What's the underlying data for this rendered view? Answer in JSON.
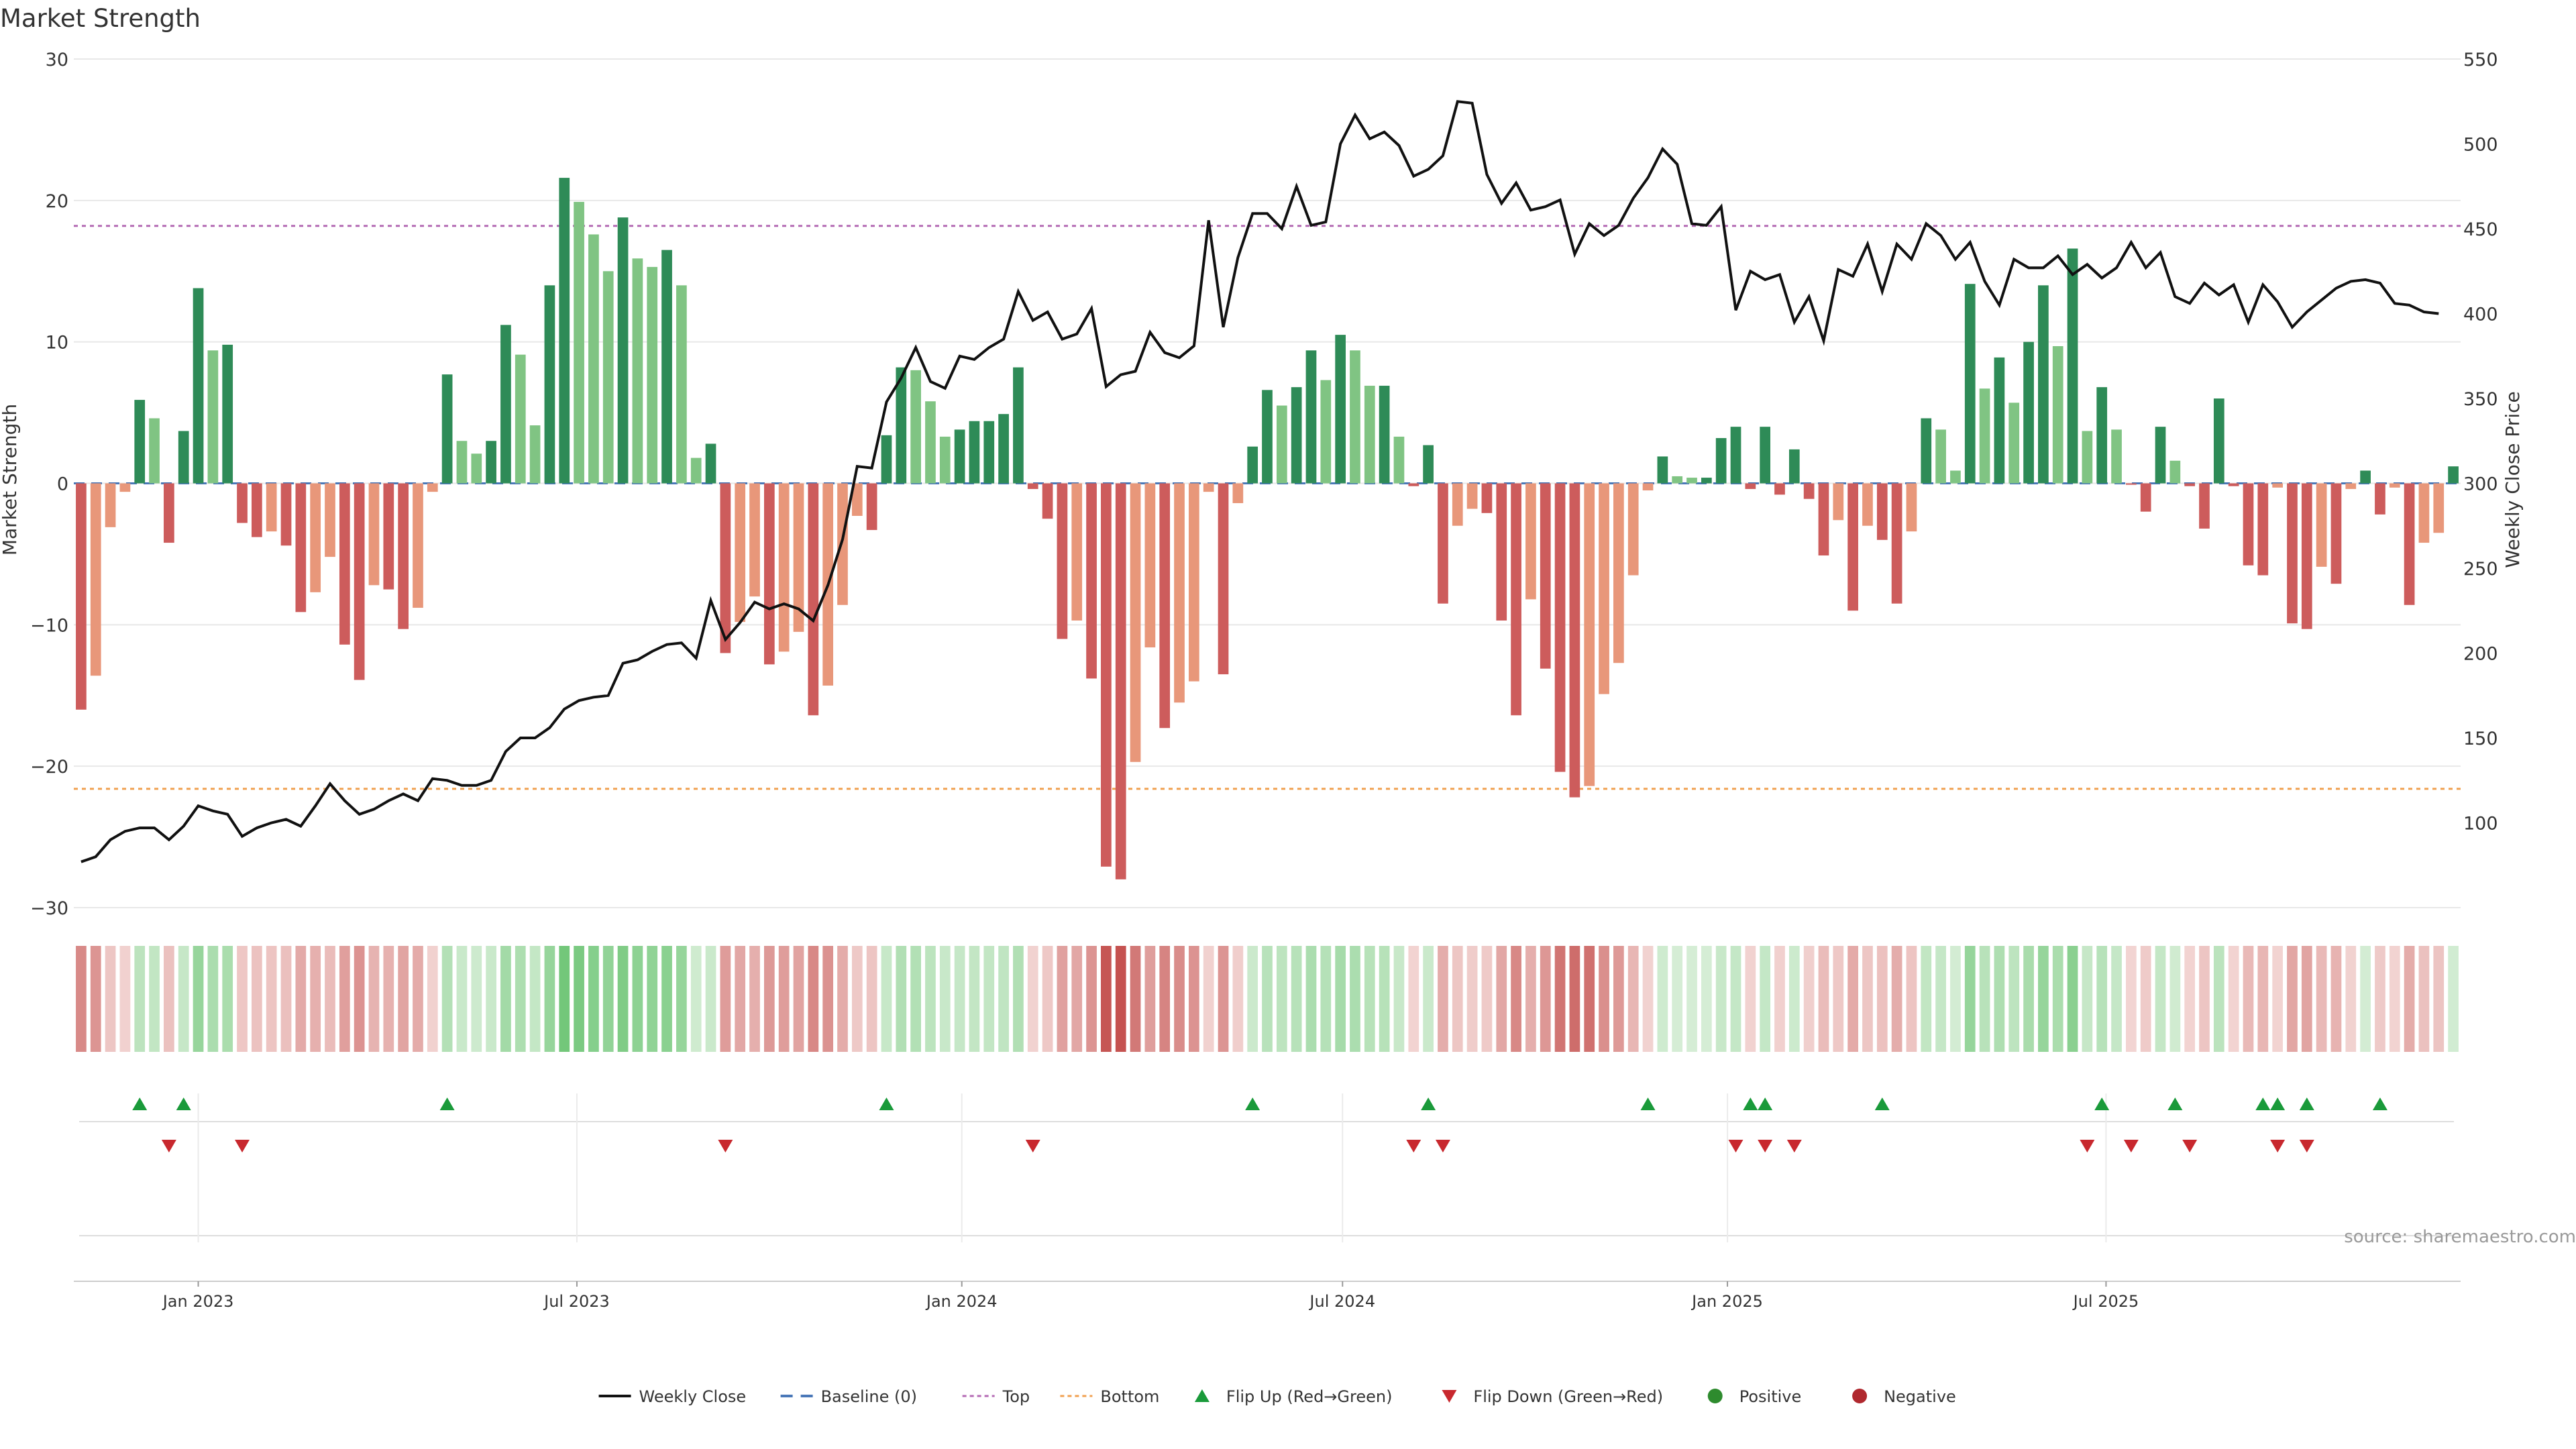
{
  "chart_data": {
    "type": "bar",
    "title": "Market Strength",
    "ylabel": "Market Strength",
    "y2label": "Weekly Close Price",
    "ylim": [
      -30,
      30
    ],
    "y2lim": [
      50,
      550
    ],
    "yticks": [
      30,
      20,
      10,
      0,
      -10,
      -20,
      -30
    ],
    "yticks_labels": [
      "30",
      "20",
      "10",
      "0",
      "−10",
      "−20",
      "−30"
    ],
    "y2ticks": [
      550,
      500,
      450,
      400,
      350,
      300,
      250,
      200,
      150,
      100
    ],
    "y2ticks_labels": [
      "550",
      "500",
      "450",
      "400",
      "350",
      "300",
      "250",
      "200",
      "150",
      "100"
    ],
    "top_line": 18.2,
    "bottom_line": -21.6,
    "start_date": "2022-11-06",
    "xticks": [
      {
        "date": "2023-01-01",
        "label": "Jan 2023"
      },
      {
        "date": "2023-07-01",
        "label": "Jul 2023"
      },
      {
        "date": "2024-01-01",
        "label": "Jan 2024"
      },
      {
        "date": "2024-07-01",
        "label": "Jul 2024"
      },
      {
        "date": "2025-01-01",
        "label": "Jan 2025"
      },
      {
        "date": "2025-07-01",
        "label": "Jul 2025"
      }
    ],
    "strength": [
      -16,
      -13.6,
      -3.1,
      -0.6,
      5.9,
      4.6,
      -4.2,
      3.7,
      13.8,
      9.4,
      9.8,
      -2.8,
      -3.8,
      -3.4,
      -4.4,
      -9.1,
      -7.7,
      -5.2,
      -11.4,
      -13.9,
      -7.2,
      -7.5,
      -10.3,
      -8.8,
      -0.6,
      7.7,
      3,
      2.1,
      3,
      11.2,
      9.1,
      4.1,
      14,
      21.6,
      19.9,
      17.6,
      15,
      18.8,
      15.9,
      15.3,
      16.5,
      14,
      1.8,
      2.8,
      -12,
      -9.8,
      -8,
      -12.8,
      -11.9,
      -10.5,
      -16.4,
      -14.3,
      -8.6,
      -2.3,
      -3.3,
      3.4,
      8.2,
      8,
      5.8,
      3.3,
      3.8,
      4.4,
      4.4,
      4.9,
      8.2,
      -0.4,
      -2.5,
      -11,
      -9.7,
      -13.8,
      -27.1,
      -28,
      -19.7,
      -11.6,
      -17.3,
      -15.5,
      -14,
      -0.6,
      -13.5,
      -1.4,
      2.6,
      6.6,
      5.5,
      6.8,
      9.4,
      7.3,
      10.5,
      9.4,
      6.9,
      6.9,
      3.3,
      -0.2,
      2.7,
      -8.5,
      -3,
      -1.8,
      -2.1,
      -9.7,
      -16.4,
      -8.2,
      -13.1,
      -20.4,
      -22.2,
      -21.4,
      -14.9,
      -12.7,
      -6.5,
      -0.5,
      1.9,
      0.5,
      0.4,
      0.4,
      3.2,
      4,
      -0.4,
      4,
      -0.8,
      2.4,
      -1.1,
      -5.1,
      -2.6,
      -9,
      -3,
      -4,
      -8.5,
      -3.4,
      4.6,
      3.8,
      0.9,
      14.1,
      6.7,
      8.9,
      5.7,
      10,
      14,
      9.7,
      16.6,
      3.7,
      6.8,
      3.8,
      -0.1,
      -2,
      4,
      1.6,
      -0.2,
      -3.2,
      6,
      -0.2,
      -5.8,
      -6.5,
      -0.3,
      -9.9,
      -10.3,
      -5.9,
      -7.1,
      -0.4,
      0.9,
      -2.2,
      -0.3,
      -8.6,
      -4.2,
      -3.5,
      1.2
    ],
    "weekly_close": [
      77,
      80,
      90,
      95,
      97,
      97,
      90,
      98,
      110,
      107,
      105,
      92,
      97,
      100,
      102,
      98,
      110,
      123,
      113,
      105,
      108,
      113,
      117,
      113,
      126,
      125,
      122,
      122,
      125,
      142,
      150,
      150,
      156,
      167,
      172,
      174,
      175,
      194,
      196,
      201,
      205,
      206,
      197,
      231,
      208,
      218,
      230,
      226,
      229,
      226,
      219,
      240,
      267,
      310,
      309,
      348,
      362,
      380,
      360,
      356,
      375,
      373,
      380,
      385,
      413,
      396,
      401,
      385,
      388,
      403,
      357,
      364,
      366,
      389,
      377,
      374,
      381,
      455,
      392,
      433,
      459,
      459,
      450,
      475,
      452,
      454,
      500,
      517,
      503,
      507,
      499,
      481,
      485,
      493,
      525,
      524,
      482,
      465,
      477,
      461,
      463,
      467,
      435,
      453,
      446,
      452,
      468,
      480,
      497,
      488,
      453,
      452,
      463,
      402,
      425,
      420,
      423,
      395,
      410,
      384,
      426,
      422,
      441,
      413,
      441,
      432,
      453,
      446,
      432,
      442,
      419,
      405,
      432,
      427,
      427,
      434,
      423,
      429,
      421,
      427,
      442,
      427,
      436,
      410,
      406,
      418,
      411,
      417,
      395,
      417,
      407,
      392,
      401,
      408,
      415,
      419,
      420,
      418,
      406,
      405,
      401,
      400
    ],
    "flip_up_idx": [
      4,
      7,
      25,
      55,
      80,
      92,
      107,
      114,
      115,
      123,
      138,
      143,
      149,
      150,
      152,
      157
    ],
    "flip_down_idx": [
      6,
      11,
      44,
      65,
      91,
      93,
      113,
      115,
      117,
      137,
      140,
      144,
      150,
      152
    ],
    "legend": [
      {
        "key": "weekly_close",
        "label": "Weekly Close",
        "color": "#111111"
      },
      {
        "key": "baseline",
        "label": "Baseline (0)",
        "color": "#4a78b8"
      },
      {
        "key": "top",
        "label": "Top",
        "color": "#b46ab4"
      },
      {
        "key": "bottom",
        "label": "Bottom",
        "color": "#f0a050"
      },
      {
        "key": "flip_up",
        "label": "Flip Up (Red→Green)",
        "color": "#1a9a3a"
      },
      {
        "key": "flip_down",
        "label": "Flip Down (Green→Red)",
        "color": "#c8282e"
      },
      {
        "key": "positive",
        "label": "Positive",
        "color": "#2e8b2e"
      },
      {
        "key": "negative",
        "label": "Negative",
        "color": "#b0282e"
      }
    ],
    "source": "source: sharemaestro.com",
    "colors": {
      "pos_strong": "#2e8b57",
      "pos_weak": "#80c483",
      "neg_strong": "#cd5c5c",
      "neg_weak": "#e8977a",
      "grid": "#e8e8e8"
    }
  }
}
